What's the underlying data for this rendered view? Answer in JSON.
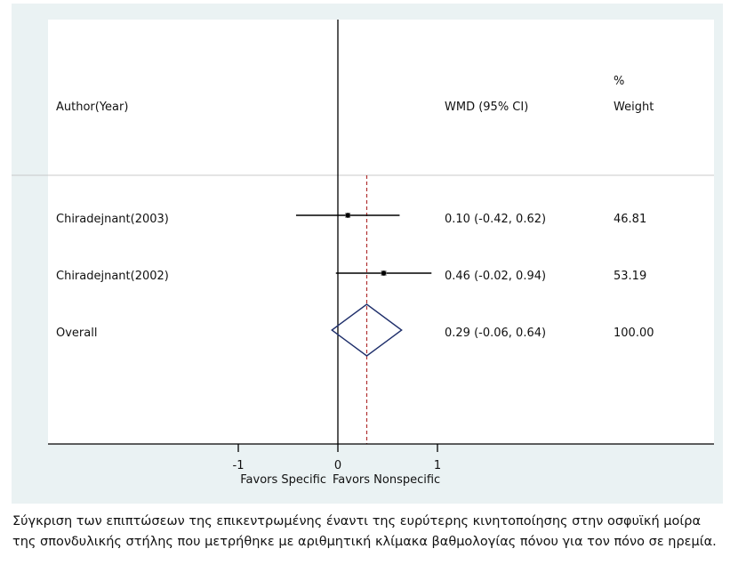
{
  "figure": {
    "caption": "Σύγκριση των επιπτώσεων της επικεντρωμένης έναντι της ευρύτερης κινητοποίησης στην οσφυϊκή μοίρα της σπονδυλικής στήλης που μετρήθηκε με αριθμητική κλίμακα βαθμολογίας πόνου για τον πόνο σε ηρεμία."
  },
  "colors": {
    "panel_bg": "#eaf2f3",
    "plot_bg": "#ffffff",
    "ci_line": "#000000",
    "diamond": "#1f2f6b",
    "overall_line": "#b03030",
    "axis": "#000000"
  },
  "chart_data": {
    "type": "forest",
    "headers": {
      "study": "Author(Year)",
      "estimate": "WMD (95% CI)",
      "weight_line1": "%",
      "weight_line2": "Weight"
    },
    "studies": [
      {
        "label": "Chiradejnant(2003)",
        "wmd": 0.1,
        "ci_low": -0.42,
        "ci_high": 0.62,
        "ci_text": "0.10 (-0.42, 0.62)",
        "weight": "46.81"
      },
      {
        "label": "Chiradejnant(2002)",
        "wmd": 0.46,
        "ci_low": -0.02,
        "ci_high": 0.94,
        "ci_text": "0.46 (-0.02, 0.94)",
        "weight": "53.19"
      }
    ],
    "overall": {
      "label": "Overall",
      "wmd": 0.29,
      "ci_low": -0.06,
      "ci_high": 0.64,
      "ci_text": "0.29 (-0.06, 0.64)",
      "weight": "100.00"
    },
    "x_ticks": [
      -1,
      0,
      1
    ],
    "x_tick_labels": [
      "-1",
      "0",
      "1"
    ],
    "null_value": 0,
    "favors_left": "Favors Specific",
    "favors_right": "Favors Nonspecific",
    "grid": false
  }
}
